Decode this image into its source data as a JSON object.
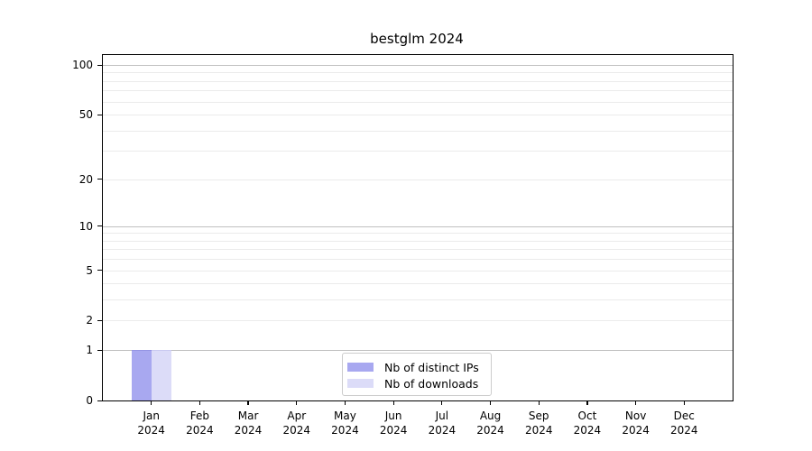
{
  "chart_data": {
    "type": "bar",
    "title": "bestglm 2024",
    "categories": [
      [
        "Jan",
        "2024"
      ],
      [
        "Feb",
        "2024"
      ],
      [
        "Mar",
        "2024"
      ],
      [
        "Apr",
        "2024"
      ],
      [
        "May",
        "2024"
      ],
      [
        "Jun",
        "2024"
      ],
      [
        "Jul",
        "2024"
      ],
      [
        "Aug",
        "2024"
      ],
      [
        "Sep",
        "2024"
      ],
      [
        "Oct",
        "2024"
      ],
      [
        "Nov",
        "2024"
      ],
      [
        "Dec",
        "2024"
      ]
    ],
    "series": [
      {
        "name": "Nb of distinct IPs",
        "color": "#a8a8f0",
        "edge_color": "#9494e4",
        "values": [
          1,
          0,
          0,
          0,
          0,
          0,
          0,
          0,
          0,
          0,
          0,
          0
        ]
      },
      {
        "name": "Nb of downloads",
        "color": "#dcdcf8",
        "edge_color": "#c9c9f0",
        "values": [
          1,
          0,
          0,
          0,
          0,
          0,
          0,
          0,
          0,
          0,
          0,
          0
        ]
      }
    ],
    "yticks": [
      0,
      1,
      2,
      5,
      10,
      20,
      50,
      100
    ],
    "y_major_grid": [
      1,
      10,
      100
    ],
    "y_minor_grid": [
      2,
      3,
      4,
      5,
      6,
      7,
      8,
      9,
      20,
      30,
      40,
      50,
      60,
      70,
      80,
      90
    ],
    "scale": "log1p",
    "ylim": [
      0,
      115
    ],
    "xlabel": "",
    "ylabel": "",
    "grid": "horizontal",
    "legend_position": "bottom-center",
    "colors": {
      "grid_major": "#c0c0c0",
      "grid_minor": "#ebebeb",
      "axis": "#000000",
      "background": "#ffffff"
    }
  }
}
